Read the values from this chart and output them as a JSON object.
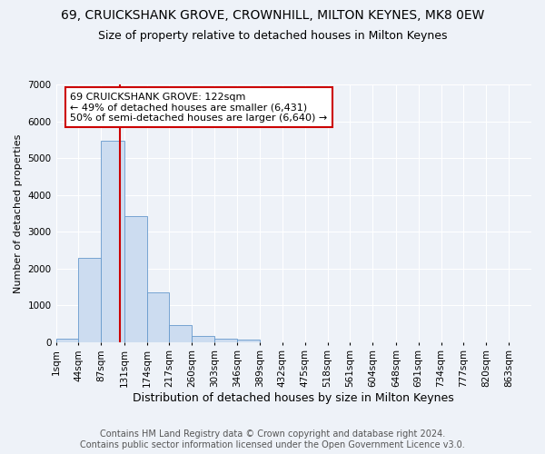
{
  "title": "69, CRUICKSHANK GROVE, CROWNHILL, MILTON KEYNES, MK8 0EW",
  "subtitle": "Size of property relative to detached houses in Milton Keynes",
  "xlabel": "Distribution of detached houses by size in Milton Keynes",
  "ylabel": "Number of detached properties",
  "bin_labels": [
    "1sqm",
    "44sqm",
    "87sqm",
    "131sqm",
    "174sqm",
    "217sqm",
    "260sqm",
    "303sqm",
    "346sqm",
    "389sqm",
    "432sqm",
    "475sqm",
    "518sqm",
    "561sqm",
    "604sqm",
    "648sqm",
    "691sqm",
    "734sqm",
    "777sqm",
    "820sqm",
    "863sqm"
  ],
  "bin_edges": [
    1,
    44,
    87,
    131,
    174,
    217,
    260,
    303,
    346,
    389,
    432,
    475,
    518,
    561,
    604,
    648,
    691,
    734,
    777,
    820,
    863
  ],
  "bar_heights": [
    80,
    2280,
    5460,
    3430,
    1340,
    450,
    175,
    100,
    60,
    0,
    0,
    0,
    0,
    0,
    0,
    0,
    0,
    0,
    0,
    0
  ],
  "bar_color": "#ccdcf0",
  "bar_edgecolor": "#6699cc",
  "property_size": 122,
  "property_line_color": "#cc0000",
  "annotation_text": "69 CRUICKSHANK GROVE: 122sqm\n← 49% of detached houses are smaller (6,431)\n50% of semi-detached houses are larger (6,640) →",
  "annotation_box_color": "white",
  "annotation_box_edgecolor": "#cc0000",
  "ylim": [
    0,
    7000
  ],
  "yticks": [
    0,
    1000,
    2000,
    3000,
    4000,
    5000,
    6000,
    7000
  ],
  "background_color": "#eef2f8",
  "grid_color": "white",
  "footer_line1": "Contains HM Land Registry data © Crown copyright and database right 2024.",
  "footer_line2": "Contains public sector information licensed under the Open Government Licence v3.0.",
  "title_fontsize": 10,
  "subtitle_fontsize": 9,
  "xlabel_fontsize": 9,
  "ylabel_fontsize": 8,
  "tick_fontsize": 7.5,
  "footer_fontsize": 7
}
